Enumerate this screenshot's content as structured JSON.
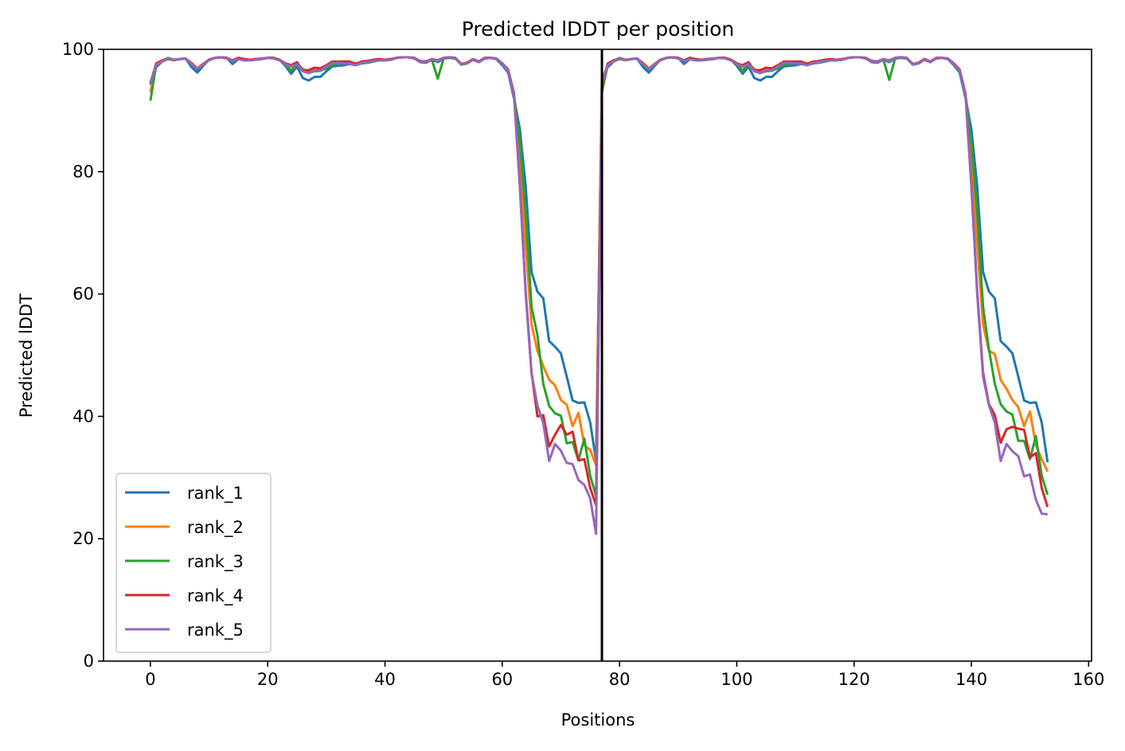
{
  "chart_data": {
    "type": "line",
    "title": "Predicted lDDT per position",
    "xlabel": "Positions",
    "ylabel": "Predicted lDDT",
    "xlim": [
      -8,
      160.5
    ],
    "ylim": [
      0,
      100
    ],
    "xticks": [
      0,
      20,
      40,
      60,
      80,
      100,
      120,
      140,
      160
    ],
    "yticks": [
      0,
      20,
      40,
      60,
      80,
      100
    ],
    "grid": false,
    "legend_position": "lower-left",
    "chain_break_x": 77,
    "chain_break_color": "#000000",
    "series": [
      {
        "name": "rank_1",
        "color": "#1f77b4",
        "values": [
          94.2,
          97.1,
          98.0,
          98.4,
          98.2,
          98.4,
          98.5,
          97.1,
          96.2,
          97.3,
          98.3,
          98.6,
          98.7,
          98.6,
          97.6,
          98.4,
          98.2,
          98.2,
          98.3,
          98.4,
          98.6,
          98.6,
          98.3,
          97.3,
          96.0,
          97.2,
          95.3,
          94.9,
          95.5,
          95.5,
          96.4,
          97.2,
          97.3,
          97.4,
          97.6,
          97.4,
          97.7,
          97.8,
          98.0,
          98.2,
          98.2,
          98.3,
          98.6,
          98.7,
          98.7,
          98.5,
          97.9,
          97.8,
          98.3,
          97.9,
          98.5,
          98.6,
          98.5,
          97.5,
          97.7,
          98.3,
          97.9,
          98.5,
          98.6,
          98.4,
          97.4,
          96.2,
          92.0,
          87.0,
          77.6,
          63.6,
          60.4,
          59.3,
          52.3,
          51.4,
          50.3,
          46.5,
          42.6,
          42.2,
          42.3,
          39.0,
          32.8,
          95.0,
          97.1,
          98.0,
          98.4,
          98.2,
          98.4,
          98.5,
          97.1,
          96.2,
          97.3,
          98.3,
          98.6,
          98.7,
          98.6,
          97.6,
          98.4,
          98.2,
          98.2,
          98.3,
          98.4,
          98.6,
          98.6,
          98.3,
          97.3,
          96.0,
          97.2,
          95.3,
          94.9,
          95.5,
          95.5,
          96.4,
          97.2,
          97.3,
          97.4,
          97.6,
          97.4,
          97.7,
          97.8,
          98.0,
          98.2,
          98.2,
          98.3,
          98.6,
          98.7,
          98.7,
          98.5,
          97.9,
          97.8,
          98.3,
          97.9,
          98.5,
          98.6,
          98.5,
          97.5,
          97.7,
          98.3,
          97.9,
          98.5,
          98.6,
          98.4,
          97.4,
          96.2,
          92.0,
          87.0,
          77.6,
          63.6,
          60.4,
          59.3,
          52.3,
          51.4,
          50.3,
          46.5,
          42.6,
          42.2,
          42.3,
          39.0,
          32.5
        ]
      },
      {
        "name": "rank_2",
        "color": "#ff7f0e",
        "values": [
          93.0,
          97.5,
          98.0,
          98.5,
          98.2,
          98.4,
          98.5,
          97.8,
          96.9,
          97.6,
          98.3,
          98.6,
          98.7,
          98.6,
          98.2,
          98.6,
          98.4,
          98.3,
          98.4,
          98.5,
          98.6,
          98.6,
          98.3,
          97.7,
          96.6,
          97.6,
          96.8,
          96.4,
          96.6,
          96.6,
          97.0,
          97.6,
          97.8,
          97.9,
          97.9,
          97.7,
          97.9,
          98.0,
          98.1,
          98.3,
          98.3,
          98.4,
          98.6,
          98.7,
          98.7,
          98.6,
          98.1,
          98.0,
          98.4,
          98.2,
          98.6,
          98.7,
          98.6,
          97.6,
          97.8,
          98.4,
          98.0,
          98.6,
          98.6,
          98.5,
          97.7,
          96.5,
          92.5,
          82.0,
          68.0,
          55.0,
          50.7,
          48.2,
          46.0,
          45.1,
          42.7,
          41.9,
          38.4,
          40.6,
          35.3,
          34.5,
          32.0,
          95.0,
          97.5,
          98.0,
          98.5,
          98.2,
          98.4,
          98.5,
          97.8,
          96.9,
          97.6,
          98.3,
          98.6,
          98.7,
          98.6,
          98.2,
          98.6,
          98.4,
          98.3,
          98.4,
          98.5,
          98.6,
          98.6,
          98.3,
          97.7,
          96.6,
          97.6,
          96.8,
          96.4,
          96.6,
          96.6,
          97.0,
          97.6,
          97.8,
          97.9,
          97.9,
          97.7,
          97.9,
          98.0,
          98.1,
          98.3,
          98.3,
          98.4,
          98.6,
          98.7,
          98.7,
          98.6,
          98.1,
          98.0,
          98.4,
          98.2,
          98.6,
          98.7,
          98.6,
          97.6,
          97.8,
          98.4,
          98.0,
          98.6,
          98.6,
          98.5,
          97.7,
          96.5,
          92.5,
          82.0,
          68.0,
          55.0,
          50.7,
          50.2,
          46.0,
          44.5,
          42.7,
          41.5,
          38.4,
          40.8,
          35.3,
          33.0,
          31.0
        ]
      },
      {
        "name": "rank_3",
        "color": "#2ca02c",
        "values": [
          91.6,
          97.5,
          98.1,
          98.6,
          98.3,
          98.4,
          98.5,
          97.6,
          96.7,
          97.5,
          98.3,
          98.6,
          98.7,
          98.6,
          98.1,
          98.5,
          98.3,
          98.3,
          98.4,
          98.5,
          98.6,
          98.6,
          98.3,
          97.5,
          96.5,
          97.4,
          96.6,
          96.2,
          96.4,
          96.5,
          96.9,
          97.5,
          97.7,
          97.8,
          97.8,
          97.6,
          97.8,
          97.9,
          98.1,
          98.2,
          98.2,
          98.3,
          98.6,
          98.7,
          98.7,
          98.5,
          98.0,
          97.9,
          98.3,
          95.2,
          98.5,
          98.6,
          98.5,
          97.6,
          97.7,
          98.3,
          97.9,
          98.5,
          98.6,
          98.5,
          97.6,
          96.4,
          92.6,
          85.0,
          73.0,
          57.9,
          53.3,
          45.3,
          41.7,
          40.5,
          40.1,
          35.6,
          35.8,
          32.8,
          36.4,
          30.3,
          27.0,
          93.0,
          97.5,
          98.1,
          98.6,
          98.3,
          98.4,
          98.5,
          97.6,
          96.7,
          97.5,
          98.3,
          98.6,
          98.7,
          98.6,
          98.1,
          98.5,
          98.3,
          98.3,
          98.4,
          98.5,
          98.6,
          98.6,
          98.3,
          97.5,
          96.5,
          97.4,
          96.6,
          96.2,
          96.4,
          96.5,
          96.9,
          97.5,
          97.7,
          97.8,
          97.8,
          97.6,
          97.8,
          97.9,
          98.1,
          98.2,
          98.2,
          98.3,
          98.6,
          98.7,
          98.7,
          98.5,
          98.0,
          97.9,
          98.3,
          95.0,
          98.5,
          98.6,
          98.5,
          97.6,
          97.7,
          98.3,
          97.9,
          98.5,
          98.6,
          98.5,
          97.6,
          96.4,
          92.6,
          85.0,
          73.0,
          57.9,
          51.0,
          45.3,
          42.0,
          40.8,
          40.3,
          36.0,
          36.0,
          33.0,
          36.8,
          30.3,
          27.2
        ]
      },
      {
        "name": "rank_4",
        "color": "#d62728",
        "values": [
          94.5,
          97.7,
          98.2,
          98.5,
          98.3,
          98.4,
          98.5,
          97.7,
          96.8,
          97.6,
          98.3,
          98.6,
          98.7,
          98.6,
          98.2,
          98.6,
          98.4,
          98.3,
          98.4,
          98.5,
          98.6,
          98.6,
          98.3,
          97.7,
          97.4,
          97.9,
          96.5,
          96.6,
          97.0,
          96.9,
          97.4,
          98.0,
          98.0,
          98.0,
          98.0,
          97.6,
          98.0,
          98.1,
          98.3,
          98.4,
          98.3,
          98.4,
          98.6,
          98.7,
          98.7,
          98.6,
          98.1,
          98.0,
          98.4,
          98.2,
          98.6,
          98.7,
          98.6,
          97.6,
          97.8,
          98.4,
          98.0,
          98.6,
          98.6,
          98.5,
          97.7,
          96.7,
          92.8,
          78.0,
          60.4,
          47.1,
          40.0,
          40.2,
          35.1,
          37.0,
          38.6,
          37.0,
          37.5,
          32.8,
          33.0,
          28.3,
          25.5,
          94.0,
          97.7,
          98.2,
          98.5,
          98.3,
          98.4,
          98.5,
          97.7,
          96.8,
          97.6,
          98.3,
          98.6,
          98.7,
          98.6,
          98.2,
          98.6,
          98.4,
          98.3,
          98.4,
          98.5,
          98.6,
          98.6,
          98.3,
          97.7,
          97.4,
          97.9,
          96.5,
          96.6,
          97.0,
          96.9,
          97.4,
          98.0,
          98.0,
          98.0,
          98.0,
          97.6,
          98.0,
          98.1,
          98.3,
          98.4,
          98.3,
          98.4,
          98.6,
          98.7,
          98.7,
          98.6,
          98.1,
          98.0,
          98.4,
          98.2,
          98.6,
          98.7,
          98.6,
          97.6,
          97.8,
          98.4,
          98.0,
          98.6,
          98.6,
          98.5,
          97.7,
          96.7,
          92.8,
          78.0,
          60.4,
          47.1,
          42.0,
          40.2,
          35.7,
          37.9,
          38.3,
          38.0,
          37.8,
          33.3,
          34.0,
          28.3,
          25.2
        ]
      },
      {
        "name": "rank_5",
        "color": "#9467bd",
        "values": [
          94.6,
          97.4,
          98.1,
          98.5,
          98.3,
          98.4,
          98.5,
          97.6,
          96.8,
          97.5,
          98.2,
          98.6,
          98.7,
          98.5,
          98.1,
          98.4,
          98.2,
          98.2,
          98.3,
          98.5,
          98.6,
          98.5,
          98.2,
          97.6,
          97.2,
          97.6,
          96.4,
          96.1,
          96.5,
          96.6,
          97.2,
          97.8,
          97.8,
          97.7,
          97.7,
          97.4,
          97.8,
          97.9,
          98.1,
          98.2,
          98.2,
          98.3,
          98.6,
          98.7,
          98.7,
          98.5,
          98.0,
          97.9,
          98.4,
          98.1,
          98.6,
          98.7,
          98.6,
          97.5,
          97.7,
          98.3,
          97.9,
          98.5,
          98.6,
          98.5,
          97.6,
          96.5,
          92.5,
          77.5,
          60.0,
          47.0,
          41.8,
          38.9,
          32.7,
          35.5,
          34.4,
          32.4,
          32.2,
          29.6,
          28.8,
          26.6,
          20.8,
          94.5,
          97.4,
          98.1,
          98.5,
          98.3,
          98.4,
          98.5,
          97.6,
          96.8,
          97.5,
          98.2,
          98.6,
          98.7,
          98.5,
          98.1,
          98.4,
          98.2,
          98.2,
          98.3,
          98.5,
          98.6,
          98.5,
          98.2,
          97.6,
          97.2,
          97.6,
          96.4,
          96.1,
          96.5,
          96.6,
          97.2,
          97.8,
          97.8,
          97.7,
          97.7,
          97.4,
          97.8,
          97.9,
          98.1,
          98.2,
          98.2,
          98.3,
          98.6,
          98.7,
          98.7,
          98.5,
          98.0,
          97.9,
          98.4,
          98.1,
          98.6,
          98.7,
          98.6,
          97.5,
          97.7,
          98.3,
          97.9,
          98.5,
          98.6,
          98.5,
          97.6,
          96.5,
          92.5,
          77.5,
          60.0,
          46.5,
          41.8,
          39.0,
          32.7,
          35.5,
          34.3,
          33.5,
          30.2,
          30.5,
          26.4,
          24.1,
          24.0
        ]
      }
    ]
  }
}
